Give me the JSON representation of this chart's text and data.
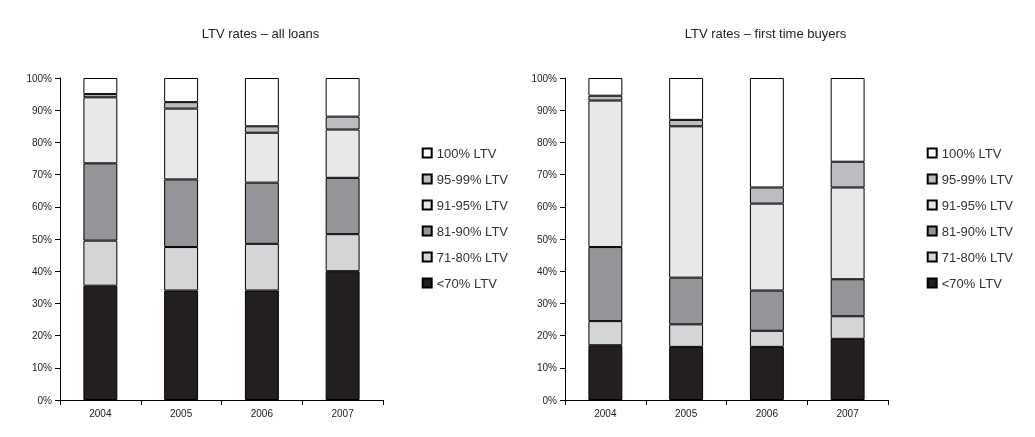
{
  "chart_data": [
    {
      "type": "bar",
      "title": "LTV rates – all loans",
      "stacked": true,
      "categories": [
        "2004",
        "2005",
        "2006",
        "2007"
      ],
      "ylim": [
        0,
        100
      ],
      "yticks": [
        {
          "value": 0,
          "label": "0%"
        },
        {
          "value": 10,
          "label": "10%"
        },
        {
          "value": 20,
          "label": "20%"
        },
        {
          "value": 30,
          "label": "30%"
        },
        {
          "value": 40,
          "label": "40%"
        },
        {
          "value": 50,
          "label": "50%"
        },
        {
          "value": 60,
          "label": "60%"
        },
        {
          "value": 70,
          "label": "70%"
        },
        {
          "value": 80,
          "label": "80%"
        },
        {
          "value": 90,
          "label": "90%"
        },
        {
          "value": 100,
          "label": "100%"
        }
      ],
      "grid": false,
      "legend": "right",
      "series": [
        {
          "name": "<70% LTV",
          "color": "#231f20",
          "values": [
            35.5,
            34,
            34,
            40
          ]
        },
        {
          "name": "71-80% LTV",
          "color": "#d4d5d7",
          "values": [
            14,
            13.5,
            14.5,
            11.5
          ]
        },
        {
          "name": "81-90% LTV",
          "color": "#939598",
          "values": [
            24,
            21,
            19,
            17.5
          ]
        },
        {
          "name": "91-95% LTV",
          "color": "#e8e8e8",
          "values": [
            20.5,
            22,
            15.5,
            15
          ]
        },
        {
          "name": "95-99% LTV",
          "color": "#bcbdc0",
          "values": [
            1,
            2,
            2,
            4
          ]
        },
        {
          "name": "100% LTV",
          "color": "#ffffff",
          "values": [
            5,
            7.5,
            15,
            12
          ]
        }
      ]
    },
    {
      "type": "bar",
      "title": "LTV rates – first time buyers",
      "stacked": true,
      "categories": [
        "2004",
        "2005",
        "2006",
        "2007"
      ],
      "ylim": [
        0,
        100
      ],
      "yticks": [
        {
          "value": 0,
          "label": "0%"
        },
        {
          "value": 10,
          "label": "10%"
        },
        {
          "value": 20,
          "label": "20%"
        },
        {
          "value": 30,
          "label": "30%"
        },
        {
          "value": 40,
          "label": "40%"
        },
        {
          "value": 50,
          "label": "50%"
        },
        {
          "value": 60,
          "label": "60%"
        },
        {
          "value": 70,
          "label": "70%"
        },
        {
          "value": 80,
          "label": "80%"
        },
        {
          "value": 90,
          "label": "90%"
        },
        {
          "value": 100,
          "label": "100%"
        }
      ],
      "grid": false,
      "legend": "right",
      "series": [
        {
          "name": "<70% LTV",
          "color": "#231f20",
          "values": [
            17,
            16.5,
            16.5,
            19
          ]
        },
        {
          "name": "71-80% LTV",
          "color": "#d4d5d7",
          "values": [
            7.5,
            7,
            5,
            7
          ]
        },
        {
          "name": "81-90% LTV",
          "color": "#939598",
          "values": [
            23,
            14.5,
            12.5,
            11.5
          ]
        },
        {
          "name": "91-95% LTV",
          "color": "#e8e8e8",
          "values": [
            45.5,
            47,
            27,
            28.5
          ]
        },
        {
          "name": "95-99% LTV",
          "color": "#bcbdc0",
          "values": [
            1.5,
            2,
            5,
            8
          ]
        },
        {
          "name": "100% LTV",
          "color": "#ffffff",
          "values": [
            5.5,
            13,
            34,
            26
          ]
        }
      ]
    }
  ]
}
